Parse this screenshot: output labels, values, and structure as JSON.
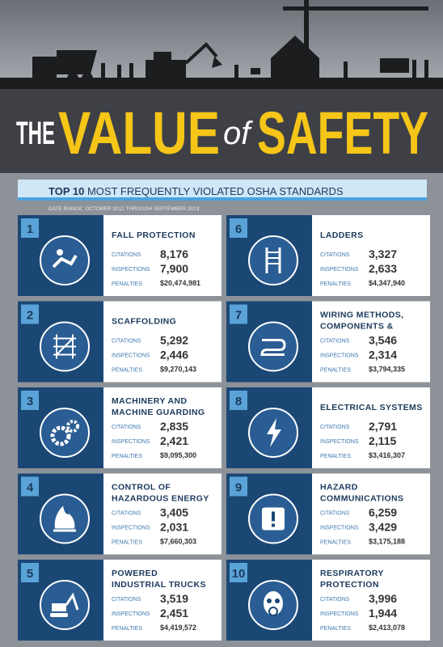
{
  "header": {
    "title": {
      "the": "THE",
      "value": "VALUE",
      "of": "of",
      "safety": "SAFETY"
    },
    "banner": {
      "lead": "TOP 10",
      "rest": "MOST FREQUENTLY VIOLATED OSHA STANDARDS"
    },
    "date_range": "DATE RANGE: OCTOBER 2012 THROUGH SEPTEMBER 2013"
  },
  "labels": {
    "citations": "CITATIONS",
    "inspections": "INSPECTIONS",
    "penalties": "PENALTIES"
  },
  "standards": [
    {
      "rank": "1",
      "title": [
        "FALL PROTECTION"
      ],
      "citations": "8,176",
      "inspections": "7,900",
      "penalties": "$20,474,981"
    },
    {
      "rank": "2",
      "title": [
        "SCAFFOLDING"
      ],
      "citations": "5,292",
      "inspections": "2,446",
      "penalties": "$9,270,143"
    },
    {
      "rank": "3",
      "title": [
        "MACHINERY AND",
        "MACHINE GUARDING"
      ],
      "citations": "2,835",
      "inspections": "2,421",
      "penalties": "$9,095,300"
    },
    {
      "rank": "4",
      "title": [
        "CONTROL OF",
        "HAZARDOUS ENERGY"
      ],
      "citations": "3,405",
      "inspections": "2,031",
      "penalties": "$7,660,303"
    },
    {
      "rank": "5",
      "title": [
        "POWERED",
        "INDUSTRIAL TRUCKS"
      ],
      "citations": "3,519",
      "inspections": "2,451",
      "penalties": "$4,419,572"
    },
    {
      "rank": "6",
      "title": [
        "LADDERS"
      ],
      "citations": "3,327",
      "inspections": "2,633",
      "penalties": "$4,347,940"
    },
    {
      "rank": "7",
      "title": [
        "WIRING METHODS,",
        "COMPONENTS &"
      ],
      "citations": "3,546",
      "inspections": "2,314",
      "penalties": "$3,794,335"
    },
    {
      "rank": "8",
      "title": [
        "ELECTRICAL SYSTEMS"
      ],
      "citations": "2,791",
      "inspections": "2,115",
      "penalties": "$3,416,307"
    },
    {
      "rank": "9",
      "title": [
        "HAZARD",
        "COMMUNICATIONS"
      ],
      "citations": "6,259",
      "inspections": "3,429",
      "penalties": "$3,175,188"
    },
    {
      "rank": "10",
      "title": [
        "RESPIRATORY",
        "PROTECTION"
      ],
      "citations": "3,996",
      "inspections": "1,944",
      "penalties": "$2,413,078"
    }
  ]
}
